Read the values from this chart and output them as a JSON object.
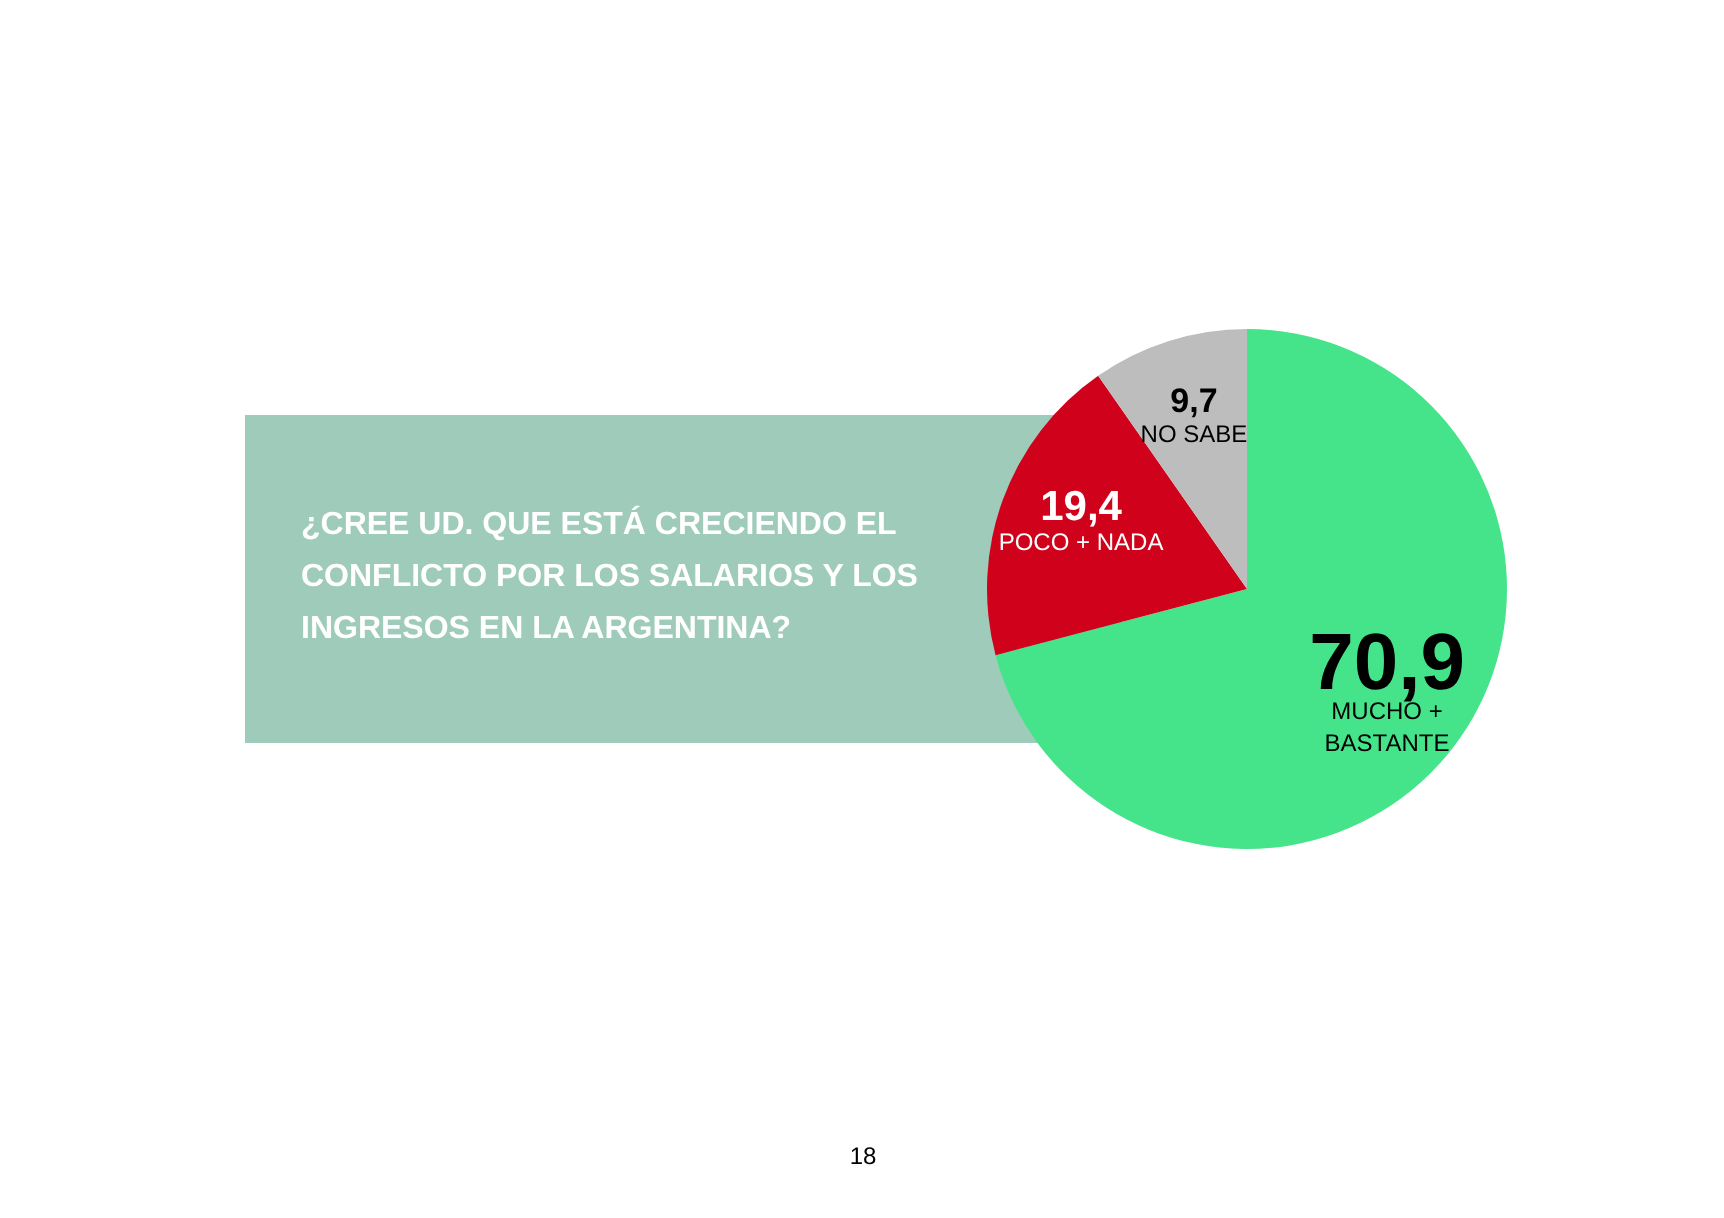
{
  "chart_data": {
    "type": "pie",
    "title": "¿CREE UD. QUE ESTÁ CRECIENDO EL CONFLICTO POR LOS SALARIOS Y LOS INGRESOS EN LA ARGENTINA?",
    "categories": [
      "MUCHO + BASTANTE",
      "POCO + NADA",
      "NO SABE"
    ],
    "values": [
      70.9,
      19.4,
      9.7
    ],
    "colors": [
      "#45e48b",
      "#d0021b",
      "#bdbdbd"
    ],
    "value_labels": [
      "70,9",
      "19,4",
      "9,7"
    ],
    "annotations": [
      "18"
    ]
  }
}
